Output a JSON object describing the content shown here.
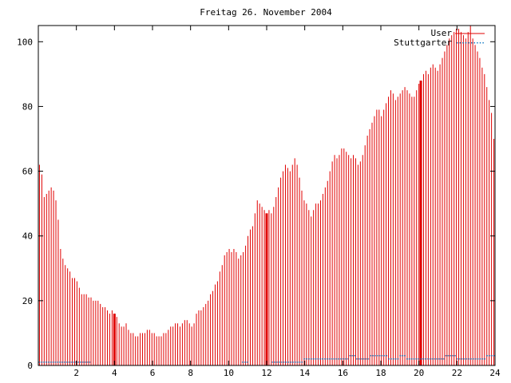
{
  "chart_data": {
    "type": "bar",
    "title": "Freitag 26. November 2004",
    "xlabel": "",
    "ylabel": "",
    "xlim": [
      0,
      24
    ],
    "ylim": [
      0,
      105
    ],
    "x_ticks": [
      "2",
      "4",
      "6",
      "8",
      "10",
      "12",
      "14",
      "16",
      "18",
      "20",
      "22",
      "24"
    ],
    "y_ticks": [
      "0",
      "20",
      "40",
      "60",
      "80",
      "100"
    ],
    "grid": false,
    "legend_position": "top-right",
    "series": [
      {
        "name": "User",
        "color": "#e00000",
        "style": "impulses",
        "values": [
          62,
          59,
          52,
          53,
          54,
          55,
          54,
          51,
          45,
          36,
          33,
          31,
          30,
          29,
          27,
          27,
          26,
          24,
          22,
          22,
          22,
          21,
          21,
          20,
          20,
          20,
          19,
          18,
          18,
          17,
          16,
          17,
          16,
          15,
          13,
          12,
          12,
          13,
          11,
          10,
          10,
          9,
          9,
          10,
          10,
          10,
          11,
          11,
          10,
          10,
          9,
          9,
          9,
          10,
          10,
          11,
          12,
          12,
          13,
          13,
          12,
          13,
          14,
          14,
          13,
          12,
          13,
          16,
          17,
          17,
          18,
          19,
          20,
          22,
          23,
          25,
          26,
          29,
          31,
          34,
          35,
          36,
          35,
          36,
          35,
          33,
          34,
          35,
          37,
          40,
          42,
          43,
          47,
          51,
          50,
          49,
          48,
          47,
          48,
          47,
          49,
          52,
          55,
          58,
          60,
          62,
          61,
          60,
          62,
          64,
          62,
          58,
          54,
          51,
          50,
          48,
          46,
          48,
          50,
          50,
          51,
          53,
          55,
          57,
          60,
          63,
          65,
          64,
          65,
          67,
          67,
          66,
          65,
          64,
          65,
          64,
          62,
          63,
          65,
          68,
          71,
          73,
          75,
          77,
          79,
          79,
          77,
          79,
          81,
          83,
          85,
          84,
          82,
          83,
          84,
          85,
          86,
          85,
          84,
          83,
          83,
          85,
          87,
          88,
          90,
          91,
          90,
          92,
          93,
          92,
          91,
          93,
          95,
          97,
          99,
          101,
          102,
          103,
          104,
          104,
          103,
          102,
          101,
          103,
          105,
          101,
          99,
          97,
          95,
          92,
          90,
          86,
          82,
          78,
          70
        ]
      },
      {
        "name": "Stuttgarter",
        "color": "#0070c0",
        "style": "points",
        "values": [
          1,
          1,
          1,
          1,
          1,
          1,
          1,
          1,
          1,
          1,
          1,
          1,
          1,
          1,
          1,
          1,
          1,
          1,
          1,
          1,
          1,
          1,
          1,
          0,
          0,
          0,
          0,
          0,
          0,
          0,
          0,
          0,
          0,
          0,
          0,
          0,
          0,
          0,
          0,
          0,
          0,
          0,
          0,
          0,
          0,
          0,
          0,
          0,
          0,
          0,
          0,
          0,
          0,
          0,
          0,
          0,
          0,
          0,
          0,
          0,
          0,
          0,
          0,
          0,
          0,
          0,
          0,
          0,
          0,
          0,
          0,
          0,
          0,
          0,
          0,
          0,
          0,
          0,
          0,
          0,
          0,
          0,
          0,
          0,
          0,
          0,
          0,
          0,
          0,
          1,
          1,
          1,
          0,
          0,
          0,
          0,
          0,
          0,
          0,
          0,
          0,
          0,
          1,
          1,
          1,
          1,
          1,
          1,
          1,
          1,
          1,
          1,
          1,
          1,
          1,
          1,
          2,
          2,
          2,
          2,
          2,
          2,
          2,
          2,
          2,
          2,
          2,
          2,
          2,
          2,
          2,
          2,
          2,
          2,
          2,
          2,
          3,
          3,
          3,
          2,
          2,
          2,
          2,
          2,
          2,
          3,
          3,
          3,
          3,
          3,
          3,
          3,
          3,
          2,
          2,
          2,
          2,
          2,
          3,
          3,
          3,
          2,
          2,
          2,
          2,
          2,
          2,
          2,
          2,
          2,
          2,
          2,
          2,
          2,
          2,
          2,
          2,
          2,
          3,
          3,
          3,
          3,
          3,
          2,
          2,
          2,
          2,
          2,
          2,
          2,
          2,
          2,
          2,
          2,
          2,
          2,
          3,
          3,
          3,
          3
        ]
      }
    ],
    "highlight_x": [
      4.0,
      12.0,
      20.1
    ]
  }
}
